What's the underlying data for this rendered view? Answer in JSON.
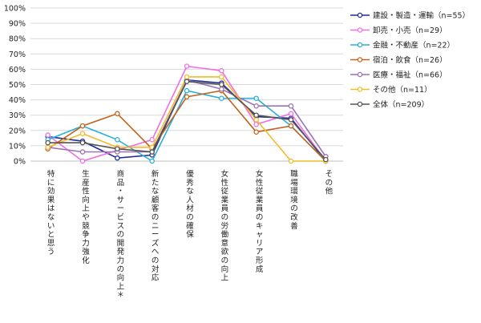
{
  "chart_data": {
    "type": "line",
    "title": "",
    "xlabel": "",
    "ylabel": "",
    "ylim": [
      0,
      100
    ],
    "y_ticks": [
      "0%",
      "10%",
      "20%",
      "30%",
      "40%",
      "50%",
      "60%",
      "70%",
      "80%",
      "90%",
      "100%"
    ],
    "grid": true,
    "legend_position": "top-right",
    "categories": [
      "特に効果はないと思う",
      "生産性向上や競争力強化",
      "商品・サービスの開発力の向上＊",
      "新たな顧客のニーズへの対応",
      "優秀な人材の確保",
      "女性従業員の労働意欲の向上",
      "女性従業員のキャリア形成",
      "職場環境の改善",
      "その他"
    ],
    "series": [
      {
        "name": "建設・製造・運輸（n=55）",
        "color": "#1f2d9e",
        "values": [
          16,
          13,
          2,
          4,
          53,
          51,
          29,
          28,
          0
        ]
      },
      {
        "name": "卸売・小売（n=29）",
        "color": "#ee6fe4",
        "values": [
          17,
          0,
          7,
          14,
          62,
          59,
          24,
          31,
          0
        ]
      },
      {
        "name": "金融・不動産（n=22）",
        "color": "#29b1d6",
        "values": [
          14,
          23,
          14,
          0,
          46,
          41,
          41,
          23,
          0
        ]
      },
      {
        "name": "宿泊・飲食（n=26）",
        "color": "#c0641f",
        "values": [
          8,
          23,
          31,
          8,
          42,
          46,
          19,
          23,
          0
        ]
      },
      {
        "name": "医療・福祉（n=66）",
        "color": "#9b72b5",
        "values": [
          9,
          6,
          6,
          6,
          53,
          47,
          36,
          36,
          3
        ]
      },
      {
        "name": "その他（n=11）",
        "color": "#f4bb2a",
        "values": [
          9,
          18,
          9,
          9,
          55,
          55,
          27,
          0,
          0
        ]
      },
      {
        "name": "全体（n=209）",
        "color": "#555555",
        "values": [
          12,
          12,
          8,
          6,
          52,
          50,
          30,
          27,
          1
        ]
      }
    ]
  }
}
